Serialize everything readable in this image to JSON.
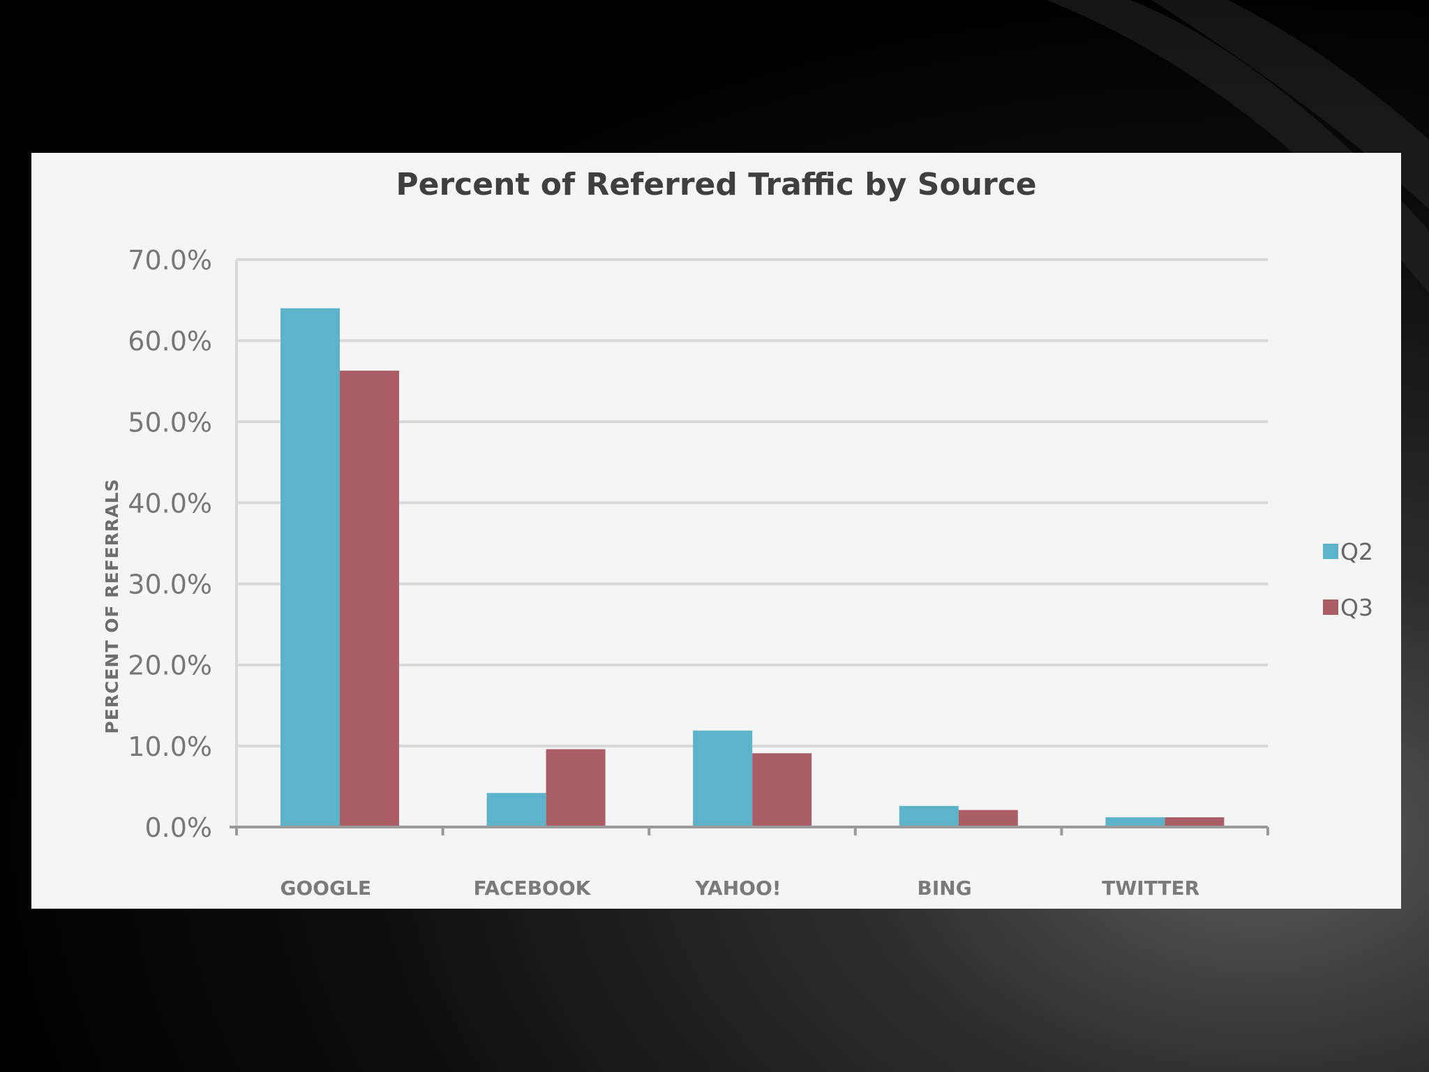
{
  "chart_data": {
    "type": "bar",
    "title": "Percent of Referred Traffic by Source",
    "xlabel": "",
    "ylabel": "PERCENT OF REFERRALS",
    "categories": [
      "GOOGLE",
      "FACEBOOK",
      "YAHOO!",
      "BING",
      "TWITTER"
    ],
    "series": [
      {
        "name": "Q2",
        "color": "#5db3c9",
        "values": [
          64.0,
          4.2,
          11.9,
          2.6,
          1.2
        ]
      },
      {
        "name": "Q3",
        "color": "#ac5e66",
        "values": [
          56.3,
          9.6,
          9.1,
          2.1,
          1.2
        ]
      }
    ],
    "ylim": [
      0,
      70
    ],
    "yticks": [
      0,
      10,
      20,
      30,
      40,
      50,
      60,
      70
    ],
    "ytick_labels": [
      "0.0%",
      "10.0%",
      "20.0%",
      "30.0%",
      "40.0%",
      "50.0%",
      "60.0%",
      "70.0%"
    ],
    "grid": true,
    "legend_position": "right",
    "colors": {
      "panel_background": "#f5f5f6",
      "gridline": "#d7d8da",
      "axis": "#9a9a9a"
    }
  }
}
